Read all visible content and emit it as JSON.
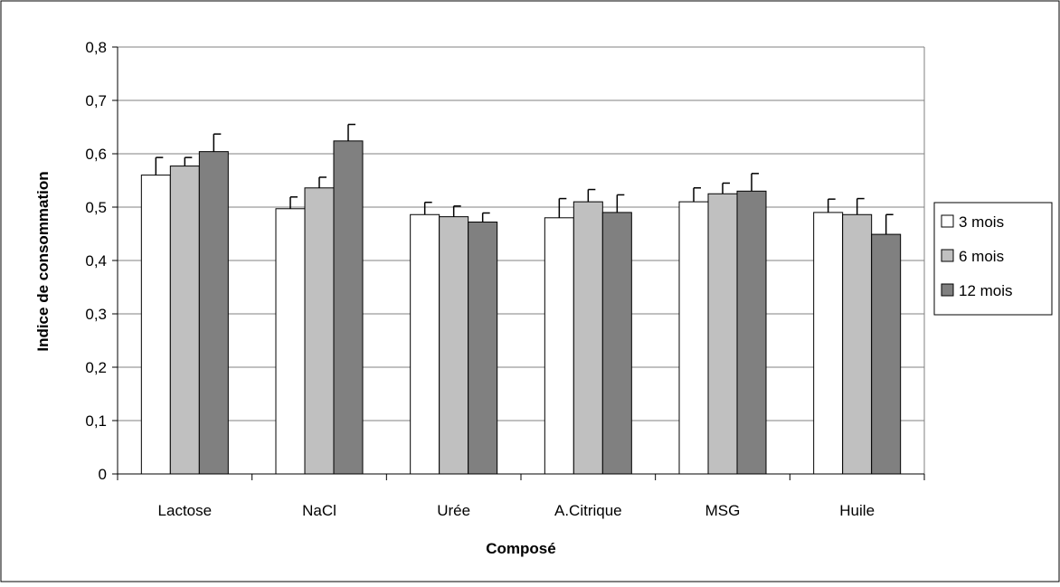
{
  "chart_data": {
    "type": "bar",
    "title": "",
    "xlabel": "Composé",
    "ylabel": "Indice de consommation",
    "categories": [
      "Lactose",
      "NaCl",
      "Urée",
      "A.Citrique",
      "MSG",
      "Huile"
    ],
    "ylim": [
      0,
      0.8
    ],
    "yticks": [
      "0",
      "0,1",
      "0,2",
      "0,3",
      "0,4",
      "0,5",
      "0,6",
      "0,7",
      "0,8"
    ],
    "grid": "horizontal",
    "legend_position": "right",
    "error_bars": true,
    "series": [
      {
        "name": "3 mois",
        "color": "#ffffff",
        "values": [
          0.56,
          0.497,
          0.486,
          0.48,
          0.51,
          0.49
        ],
        "errors": [
          0.033,
          0.022,
          0.023,
          0.036,
          0.026,
          0.025
        ]
      },
      {
        "name": "6 mois",
        "color": "#c0c0c0",
        "values": [
          0.577,
          0.536,
          0.482,
          0.51,
          0.525,
          0.486
        ],
        "errors": [
          0.016,
          0.02,
          0.02,
          0.023,
          0.02,
          0.03
        ]
      },
      {
        "name": "12 mois",
        "color": "#808080",
        "values": [
          0.604,
          0.624,
          0.472,
          0.49,
          0.53,
          0.449
        ],
        "errors": [
          0.033,
          0.031,
          0.017,
          0.033,
          0.033,
          0.037
        ]
      }
    ]
  }
}
